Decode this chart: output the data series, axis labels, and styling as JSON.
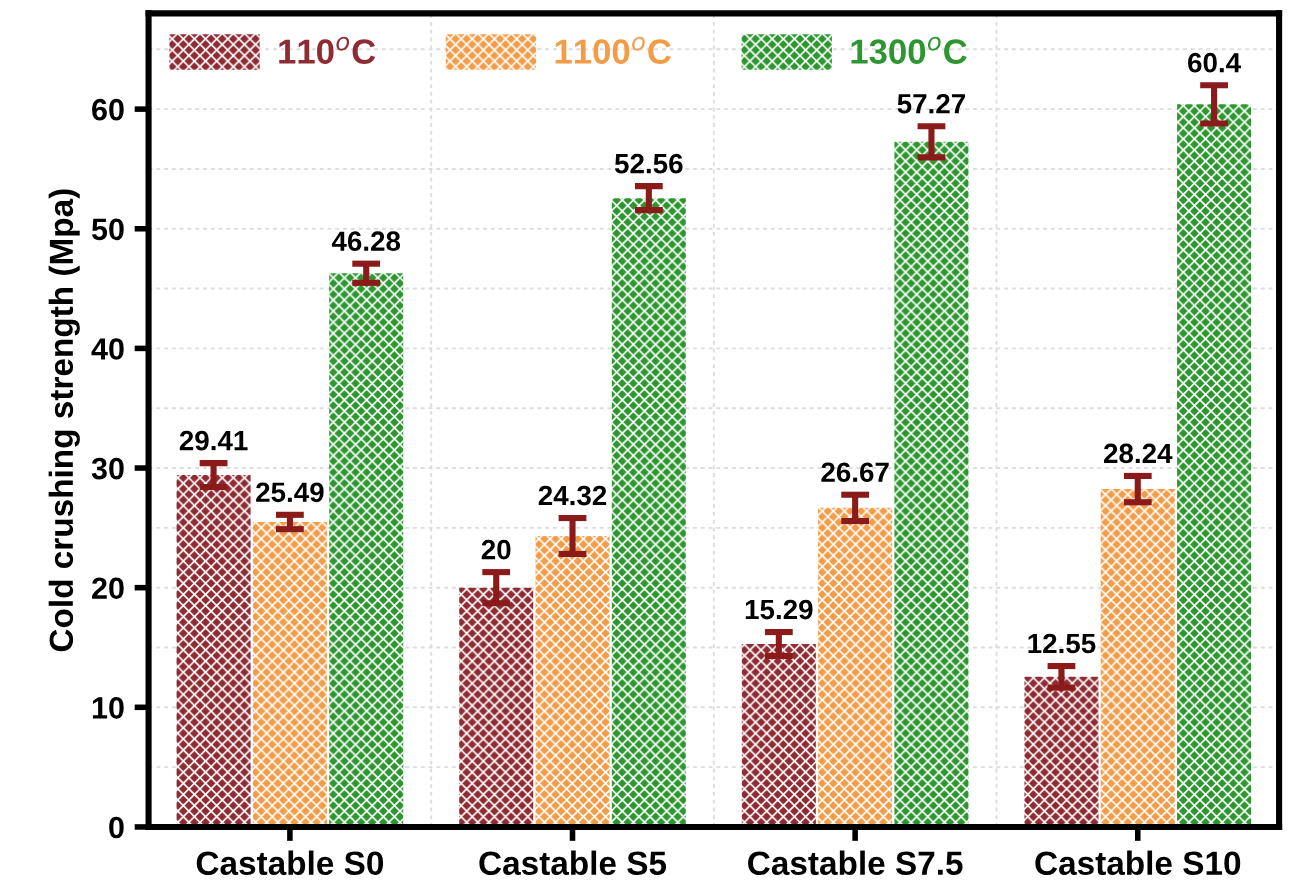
{
  "chart_data": {
    "type": "bar",
    "ylabel": "Cold crushing strength (Mpa)",
    "categories": [
      "Castable S0",
      "Castable S5",
      "Castable S7.5",
      "Castable S10"
    ],
    "series": [
      {
        "name": "110$^{o}$C",
        "color": "#8e2b33",
        "values": [
          29.41,
          20,
          15.29,
          12.55
        ],
        "errors": [
          1.0,
          1.3,
          1.0,
          0.9
        ]
      },
      {
        "name": "1100$^{o}$C",
        "color": "#f39c48",
        "values": [
          25.49,
          24.32,
          26.67,
          28.24
        ],
        "errors": [
          0.6,
          1.5,
          1.1,
          1.1
        ]
      },
      {
        "name": "1300$^{o}$C",
        "color": "#2e9630",
        "values": [
          46.28,
          52.56,
          57.27,
          60.4
        ],
        "errors": [
          0.8,
          1.0,
          1.3,
          1.6
        ]
      }
    ],
    "ylim": [
      0,
      68
    ],
    "yticks": [
      0,
      {
        "value": 5,
        "label": null
      },
      10,
      {
        "value": 15,
        "label": null
      },
      20,
      {
        "value": 25,
        "label": null
      },
      30,
      {
        "value": 35,
        "label": null
      },
      40,
      {
        "value": 45,
        "label": null
      },
      50,
      {
        "value": 55,
        "label": null
      },
      60,
      {
        "value": 65,
        "label": null
      }
    ],
    "data_labels": true,
    "grid": true,
    "legend": "top"
  }
}
